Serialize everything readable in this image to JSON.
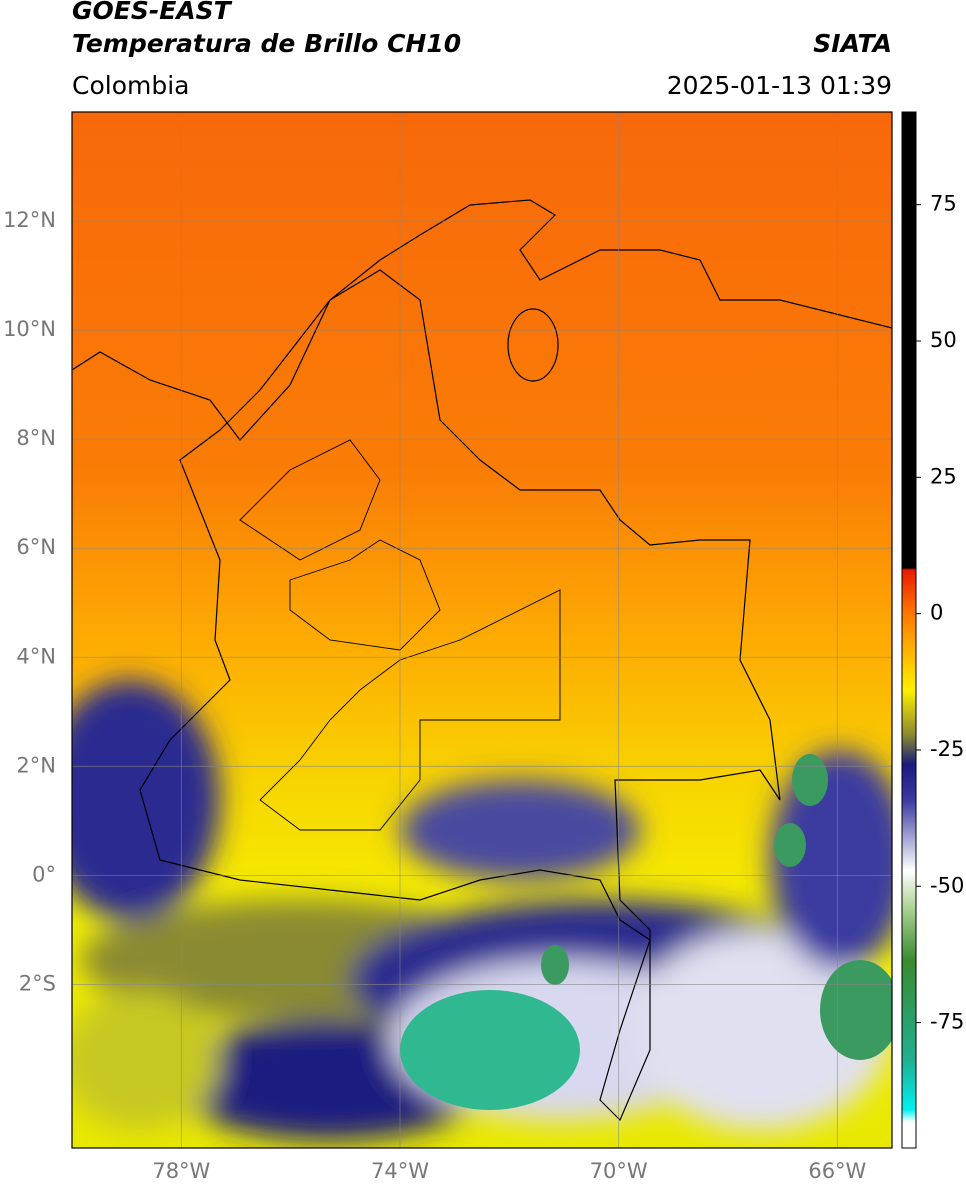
{
  "header": {
    "title": "GOES-EAST",
    "subtitle": "Temperatura de Brillo CH10",
    "source": "SIATA",
    "region": "Colombia",
    "timestamp": "2025-01-13 01:39"
  },
  "map": {
    "lonlim": [
      -80,
      -65
    ],
    "latlim": [
      -5,
      14
    ],
    "lon_ticks": [
      {
        "value": -78,
        "label": "78°W"
      },
      {
        "value": -74,
        "label": "74°W"
      },
      {
        "value": -70,
        "label": "70°W"
      },
      {
        "value": -66,
        "label": "66°W"
      }
    ],
    "lat_ticks": [
      {
        "value": 12,
        "label": "12°N"
      },
      {
        "value": 10,
        "label": "10°N"
      },
      {
        "value": 8,
        "label": "8°N"
      },
      {
        "value": 6,
        "label": "6°N"
      },
      {
        "value": 4,
        "label": "4°N"
      },
      {
        "value": 2,
        "label": "2°N"
      },
      {
        "value": 0,
        "label": "0°"
      },
      {
        "value": -2,
        "label": "2°S"
      }
    ]
  },
  "colorbar": {
    "lim": [
      -98,
      92
    ],
    "ticks": [
      75,
      50,
      25,
      0,
      -25,
      -50,
      -75
    ]
  }
}
